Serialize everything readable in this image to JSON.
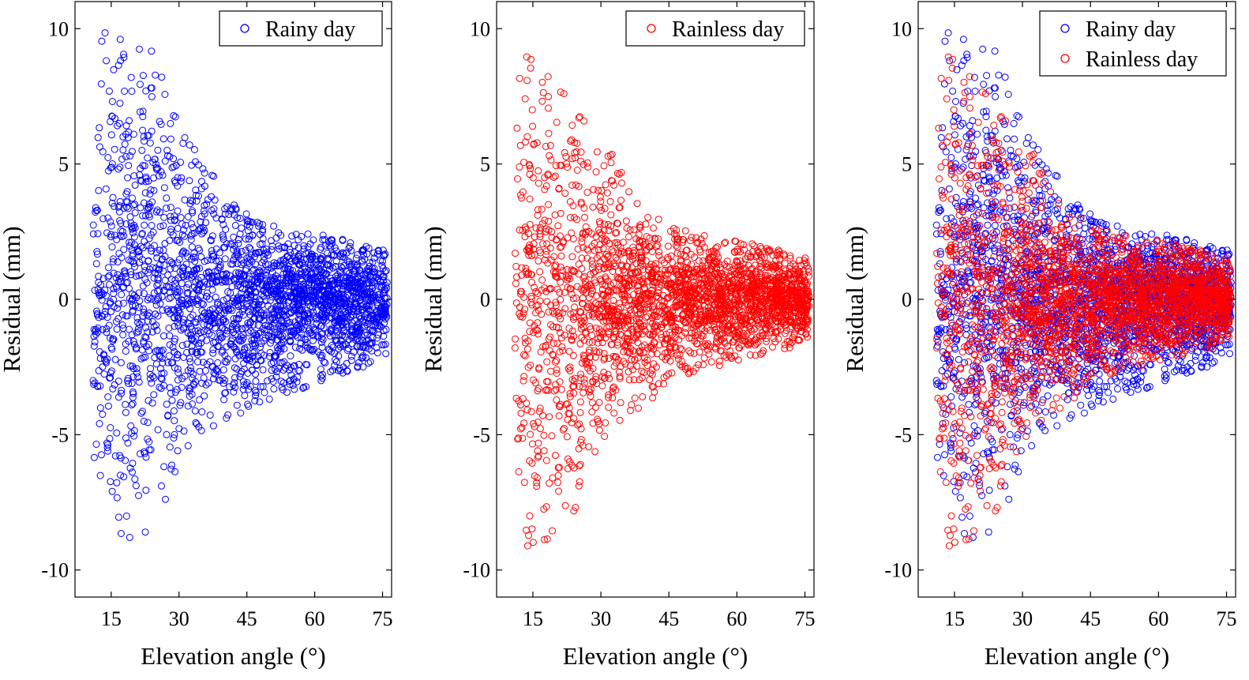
{
  "chart_data": [
    {
      "type": "scatter",
      "xlabel": "Elevation angle (°)",
      "ylabel": "Residual (mm)",
      "xlim": [
        7,
        77
      ],
      "ylim": [
        -11,
        11
      ],
      "xticks": [
        15,
        30,
        45,
        60,
        75
      ],
      "yticks": [
        10,
        5,
        0,
        -5,
        -10
      ],
      "legend": "top-right",
      "grid": false,
      "series": [
        {
          "name": "Rainy day",
          "color": "#0000ff",
          "marker": "circle-open",
          "envelope": {
            "x": [
              11,
              13,
              15,
              20,
              24,
              30,
              35,
              40,
              45,
              50,
              55,
              60,
              65,
              70,
              76
            ],
            "upper": [
              5,
              10.8,
              10.3,
              9.4,
              9.2,
              6.5,
              5.2,
              4.0,
              3.2,
              2.8,
              2.6,
              2.5,
              2.3,
              2.0,
              1.8
            ],
            "lower": [
              -5.5,
              -10.1,
              -9.4,
              -9.0,
              -8.8,
              -6.0,
              -5.0,
              -4.8,
              -4.2,
              -3.7,
              -3.4,
              -3.2,
              -2.8,
              -2.6,
              -2.0
            ]
          }
        },
        {
          "name": "Rainless day",
          "color": "#ff0000",
          "marker": "circle-open",
          "envelope": {
            "x": [
              11,
              12,
              15,
              20,
              25,
              30,
              35,
              40,
              45,
              50,
              55,
              60,
              65,
              70,
              76
            ],
            "upper": [
              4,
              9.7,
              9.2,
              8.5,
              7.0,
              6.5,
              4.5,
              3.2,
              2.8,
              2.5,
              2.3,
              2.2,
              2.0,
              1.8,
              1.5
            ],
            "lower": [
              -4,
              -9.9,
              -9.3,
              -8.6,
              -7.8,
              -5.2,
              -4.5,
              -4.0,
              -3.2,
              -2.7,
              -2.5,
              -2.3,
              -2.1,
              -1.9,
              -1.6
            ]
          }
        }
      ]
    },
    {
      "panel": "left",
      "legend_series": [
        "Rainy day"
      ]
    },
    {
      "panel": "middle",
      "legend_series": [
        "Rainless day"
      ]
    },
    {
      "panel": "right",
      "legend_series": [
        "Rainy day",
        "Rainless day"
      ]
    }
  ]
}
